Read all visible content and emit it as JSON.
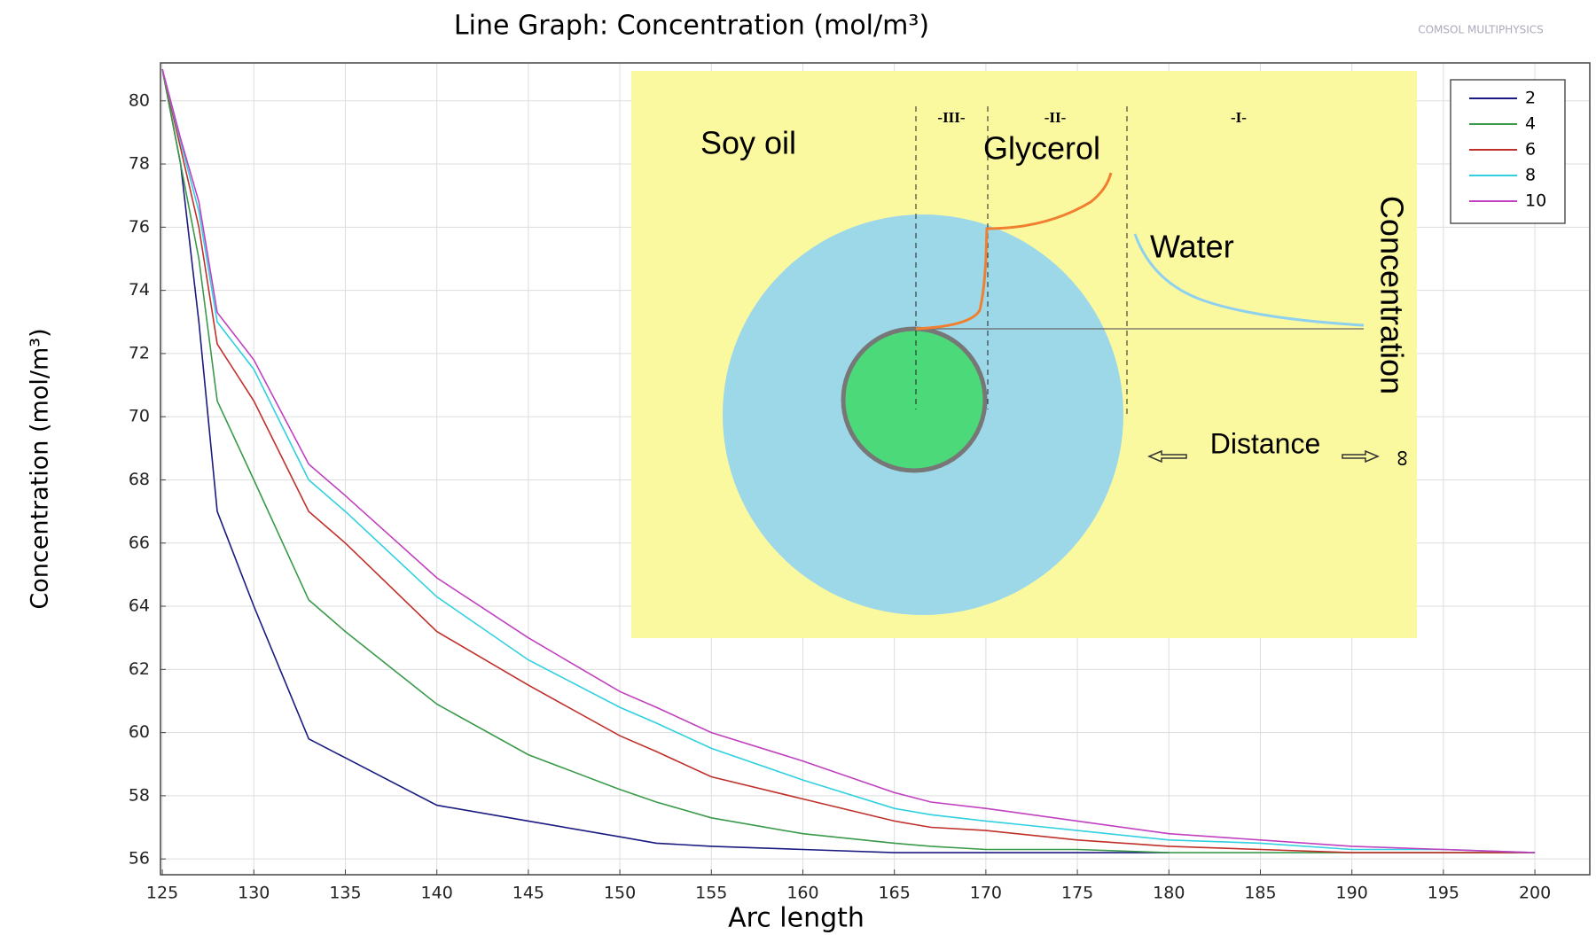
{
  "chart_data": {
    "type": "line",
    "title": "Line Graph: Concentration (mol/m³)",
    "xlabel": "Arc length",
    "ylabel": "Concentration (mol/m³)",
    "logo": "COMSOL MULTIPHYSICS",
    "x": [
      125,
      126,
      127,
      128,
      130,
      133,
      135,
      140,
      145,
      150,
      152,
      155,
      160,
      165,
      167,
      170,
      175,
      180,
      185,
      190,
      195,
      200
    ],
    "series": [
      {
        "name": "2",
        "color": "#1a1a80",
        "values": [
          81,
          78,
          73,
          67,
          64,
          59.8,
          59.2,
          57.7,
          57.2,
          56.7,
          56.5,
          56.4,
          56.3,
          56.2,
          56.2,
          56.2,
          56.2,
          56.2,
          null,
          null,
          null,
          null
        ]
      },
      {
        "name": "4",
        "color": "#3a9a4a",
        "values": [
          81,
          78,
          75,
          70.5,
          68,
          64.2,
          63.2,
          60.9,
          59.3,
          58.2,
          57.8,
          57.3,
          56.8,
          56.5,
          56.4,
          56.3,
          56.3,
          56.2,
          56.2,
          56.2,
          56.2,
          56.2
        ]
      },
      {
        "name": "6",
        "color": "#c0302a",
        "values": [
          81,
          78.5,
          76,
          72.3,
          70.5,
          67,
          66,
          63.2,
          61.5,
          59.9,
          59.4,
          58.6,
          57.9,
          57.2,
          57,
          56.9,
          56.6,
          56.4,
          56.3,
          56.2,
          56.2,
          56.2
        ]
      },
      {
        "name": "8",
        "color": "#30d0e0",
        "values": [
          81,
          78.7,
          76.5,
          73,
          71.5,
          68,
          67,
          64.3,
          62.3,
          60.8,
          60.3,
          59.5,
          58.5,
          57.6,
          57.4,
          57.2,
          56.9,
          56.6,
          56.5,
          56.3,
          56.3,
          56.2
        ]
      },
      {
        "name": "10",
        "color": "#c040c0",
        "values": [
          81,
          78.8,
          76.8,
          73.3,
          71.8,
          68.5,
          67.5,
          64.9,
          63,
          61.3,
          60.8,
          60,
          59.1,
          58.1,
          57.8,
          57.6,
          57.2,
          56.8,
          56.6,
          56.4,
          56.3,
          56.2
        ]
      }
    ],
    "xlim": [
      124.9,
      203
    ],
    "ylim": [
      55.5,
      81.2
    ],
    "xticks": [
      125,
      130,
      135,
      140,
      145,
      150,
      155,
      160,
      165,
      170,
      175,
      180,
      185,
      190,
      195,
      200
    ],
    "yticks": [
      56,
      58,
      60,
      62,
      64,
      66,
      68,
      70,
      72,
      74,
      76,
      78,
      80
    ],
    "grid": true,
    "legend": "upper right",
    "annotations": [
      "Soy oil",
      "Glycerol",
      "Water",
      "Concentration",
      "Distance",
      "∞",
      "-III-",
      "-II-",
      "-I-"
    ]
  }
}
